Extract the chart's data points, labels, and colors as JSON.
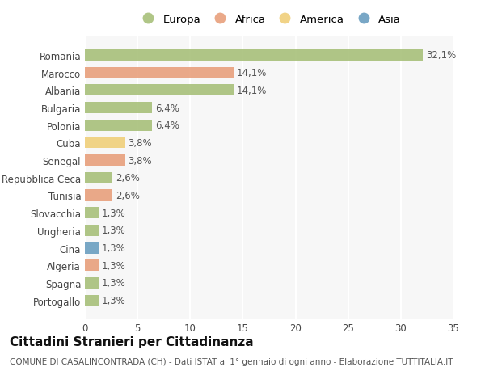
{
  "countries": [
    "Romania",
    "Marocco",
    "Albania",
    "Bulgaria",
    "Polonia",
    "Cuba",
    "Senegal",
    "Repubblica Ceca",
    "Tunisia",
    "Slovacchia",
    "Ungheria",
    "Cina",
    "Algeria",
    "Spagna",
    "Portogallo"
  ],
  "values": [
    32.1,
    14.1,
    14.1,
    6.4,
    6.4,
    3.8,
    3.8,
    2.6,
    2.6,
    1.3,
    1.3,
    1.3,
    1.3,
    1.3,
    1.3
  ],
  "labels": [
    "32,1%",
    "14,1%",
    "14,1%",
    "6,4%",
    "6,4%",
    "3,8%",
    "3,8%",
    "2,6%",
    "2,6%",
    "1,3%",
    "1,3%",
    "1,3%",
    "1,3%",
    "1,3%",
    "1,3%"
  ],
  "continents": [
    "Europa",
    "Africa",
    "Europa",
    "Europa",
    "Europa",
    "America",
    "Africa",
    "Europa",
    "Africa",
    "Europa",
    "Europa",
    "Asia",
    "Africa",
    "Europa",
    "Europa"
  ],
  "continent_colors": {
    "Europa": "#a8c07a",
    "Africa": "#e8a07c",
    "America": "#f0cf7a",
    "Asia": "#6a9ec0"
  },
  "legend_order": [
    "Europa",
    "Africa",
    "America",
    "Asia"
  ],
  "title": "Cittadini Stranieri per Cittadinanza",
  "subtitle": "COMUNE DI CASALINCONTRADA (CH) - Dati ISTAT al 1° gennaio di ogni anno - Elaborazione TUTTITALIA.IT",
  "xlim": [
    0,
    35
  ],
  "xticks": [
    0,
    5,
    10,
    15,
    20,
    25,
    30,
    35
  ],
  "bg_color": "#ffffff",
  "plot_bg_color": "#f7f7f7",
  "grid_color": "#ffffff",
  "bar_height": 0.65,
  "label_fontsize": 8.5,
  "tick_fontsize": 8.5,
  "title_fontsize": 11,
  "subtitle_fontsize": 7.5
}
